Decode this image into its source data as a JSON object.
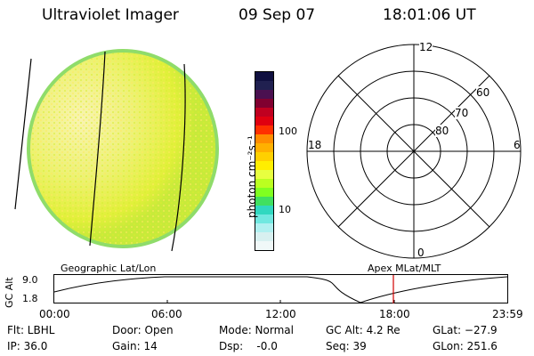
{
  "header": {
    "instrument": "Ultraviolet Imager",
    "date": "09 Sep 07",
    "time": "18:01:06 UT"
  },
  "colorbar": {
    "unit_label": "photon cm⁻²s⁻¹",
    "tick_labels": [
      "100",
      "10"
    ],
    "colors": [
      "#101040",
      "#202050",
      "#4a1050",
      "#800030",
      "#c00020",
      "#e00010",
      "#ff3000",
      "#ff8c00",
      "#ffb000",
      "#ffd000",
      "#ffee00",
      "#e8ff40",
      "#bbff20",
      "#80ff20",
      "#40e060",
      "#30d8c0",
      "#70e8e0",
      "#b0f0f0",
      "#d8f0f0",
      "#f0f8f8"
    ]
  },
  "polar_plot": {
    "labels": {
      "top": "12",
      "left": "18",
      "right": "6",
      "bottom": "0"
    },
    "circle_labels": [
      "60",
      "70",
      "80"
    ]
  },
  "altitude_plot": {
    "left_header": "Geographic Lat/Lon",
    "right_header": "Apex MLat/MLT",
    "axis_label": "GC Alt",
    "y_ticks": [
      "9.0",
      "1.8"
    ],
    "x_ticks": [
      "00:00",
      "06:00",
      "12:00",
      "18:00",
      "23:59"
    ],
    "current_time_marker": "18:01"
  },
  "footer": {
    "filter": "Flt: LBHL",
    "ip": "IP: 36.0",
    "door": "Door: Open",
    "gain": "Gain: 14",
    "mode": "Mode: Normal",
    "dsp": "Dsp:    -0.0",
    "gc_alt": "GC Alt: 4.2 Re",
    "seq": "Seq: 39",
    "glat": "GLat: −27.9",
    "glon": "GLon: 251.6"
  },
  "colors": {
    "earth_disk": "#e6f23a",
    "earth_bright": "#f6f0a0",
    "earth_edge": "#9be06a",
    "marker_line": "#d00000"
  }
}
